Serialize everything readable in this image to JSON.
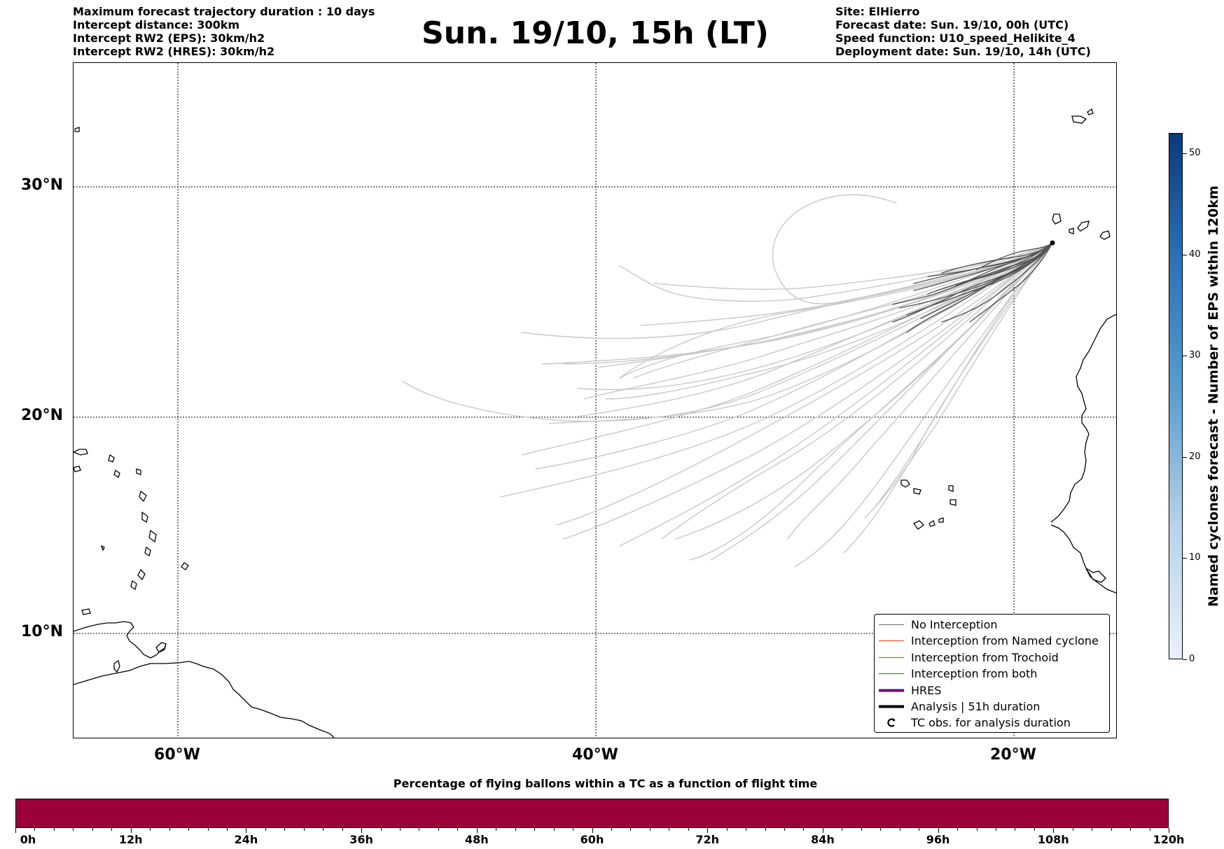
{
  "header": {
    "left_lines": [
      "Maximum forecast trajectory duration : 10 days",
      "Intercept distance: 300km",
      "Intercept RW2 (EPS):  30km/h2",
      "Intercept RW2 (HRES): 30km/h2"
    ],
    "title": "Sun. 19/10, 15h (LT)",
    "right_lines": [
      "Site: ElHierro",
      "Forecast date: Sun. 19/10, 00h (UTC)",
      "Speed function: U10_speed_Helikite_4",
      "Deployment date: Sun. 19/10, 14h (UTC)"
    ]
  },
  "map": {
    "lat_labels": [
      "30°N",
      "20°N",
      "10°N"
    ],
    "lon_labels": [
      "60°W",
      "40°W",
      "20°W"
    ],
    "deployment_site": "ElHierro",
    "trajectory_colors": {
      "no_interception_light": "#c8c8c8",
      "no_interception_dark": "#555555"
    }
  },
  "legend": {
    "items": [
      {
        "label": "No Interception",
        "color": "#808080",
        "style": "thin"
      },
      {
        "label": "Interception from Named cyclone",
        "color": "#e8562a",
        "style": "thin"
      },
      {
        "label": "Interception from Trochoid",
        "color": "#8b8b00",
        "style": "thin"
      },
      {
        "label": "Interception from both",
        "color": "#2ca02c",
        "style": "thin"
      },
      {
        "label": "HRES",
        "color": "#7a007a",
        "style": "thick"
      },
      {
        "label": "Analysis | 51h duration",
        "color": "#000000",
        "style": "thick"
      },
      {
        "label": "TC obs. for analysis duration",
        "color": "#000000",
        "style": "marker"
      }
    ]
  },
  "colorbar": {
    "title": "Named cyclones forecast - Number of EPS within 120km",
    "ticks": [
      "0",
      "10",
      "20",
      "30",
      "40",
      "50"
    ],
    "color_low": "#e8f1fb",
    "color_high": "#0b3a7a"
  },
  "bottom_bar": {
    "title": "Percentage of flying ballons within a TC as a function of flight time",
    "fill_color": "#9b0038",
    "ticks": [
      "0h",
      "12h",
      "24h",
      "36h",
      "48h",
      "60h",
      "72h",
      "84h",
      "96h",
      "108h",
      "120h"
    ]
  }
}
